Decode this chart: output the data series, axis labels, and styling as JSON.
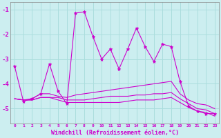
{
  "background_color": "#cceef0",
  "grid_color": "#aadddd",
  "line_color": "#cc00cc",
  "xlabel": "Windchill (Refroidissement éolien,°C)",
  "xlim": [
    -0.5,
    23.5
  ],
  "ylim": [
    -5.6,
    -0.7
  ],
  "yticks": [
    -5,
    -4,
    -3,
    -2,
    -1
  ],
  "xticks": [
    0,
    1,
    2,
    3,
    4,
    5,
    6,
    7,
    8,
    9,
    10,
    11,
    12,
    13,
    14,
    15,
    16,
    17,
    18,
    19,
    20,
    21,
    22,
    23
  ],
  "series1_x": [
    0,
    1,
    2,
    3,
    4,
    5,
    6,
    7,
    8,
    9,
    10,
    11,
    12,
    13,
    14,
    15,
    16,
    17,
    18,
    19,
    20,
    21,
    22,
    23
  ],
  "series1_y": [
    -3.3,
    -4.7,
    -4.6,
    -4.4,
    -3.2,
    -4.3,
    -4.8,
    -1.15,
    -1.1,
    -2.1,
    -3.0,
    -2.6,
    -3.4,
    -2.6,
    -1.75,
    -2.5,
    -3.1,
    -2.4,
    -2.5,
    -3.9,
    -4.9,
    -5.1,
    -5.2,
    -5.2
  ],
  "series2_x": [
    0,
    1,
    2,
    3,
    4,
    5,
    6,
    7,
    8,
    9,
    10,
    11,
    12,
    13,
    14,
    15,
    16,
    17,
    18,
    19,
    20,
    21,
    22,
    23
  ],
  "series2_y": [
    -4.6,
    -4.65,
    -4.6,
    -4.4,
    -4.4,
    -4.5,
    -4.55,
    -4.45,
    -4.4,
    -4.35,
    -4.3,
    -4.25,
    -4.2,
    -4.15,
    -4.1,
    -4.05,
    -4.0,
    -3.95,
    -3.9,
    -4.4,
    -4.65,
    -4.8,
    -4.85,
    -5.0
  ],
  "series3_x": [
    0,
    1,
    2,
    3,
    4,
    5,
    6,
    7,
    8,
    9,
    10,
    11,
    12,
    13,
    14,
    15,
    16,
    17,
    18,
    19,
    20,
    21,
    22,
    23
  ],
  "series3_y": [
    -4.6,
    -4.65,
    -4.65,
    -4.55,
    -4.55,
    -4.55,
    -4.65,
    -4.65,
    -4.65,
    -4.6,
    -4.55,
    -4.5,
    -4.5,
    -4.5,
    -4.45,
    -4.45,
    -4.4,
    -4.4,
    -4.35,
    -4.6,
    -4.8,
    -5.0,
    -5.05,
    -5.2
  ],
  "series4_x": [
    0,
    1,
    2,
    3,
    4,
    5,
    6,
    7,
    8,
    9,
    10,
    11,
    12,
    13,
    14,
    15,
    16,
    17,
    18,
    19,
    20,
    21,
    22,
    23
  ],
  "series4_y": [
    -4.6,
    -4.65,
    -4.65,
    -4.55,
    -4.55,
    -4.65,
    -4.75,
    -4.75,
    -4.75,
    -4.75,
    -4.75,
    -4.75,
    -4.75,
    -4.7,
    -4.65,
    -4.65,
    -4.65,
    -4.6,
    -4.55,
    -4.75,
    -4.95,
    -5.1,
    -5.15,
    -5.3
  ]
}
